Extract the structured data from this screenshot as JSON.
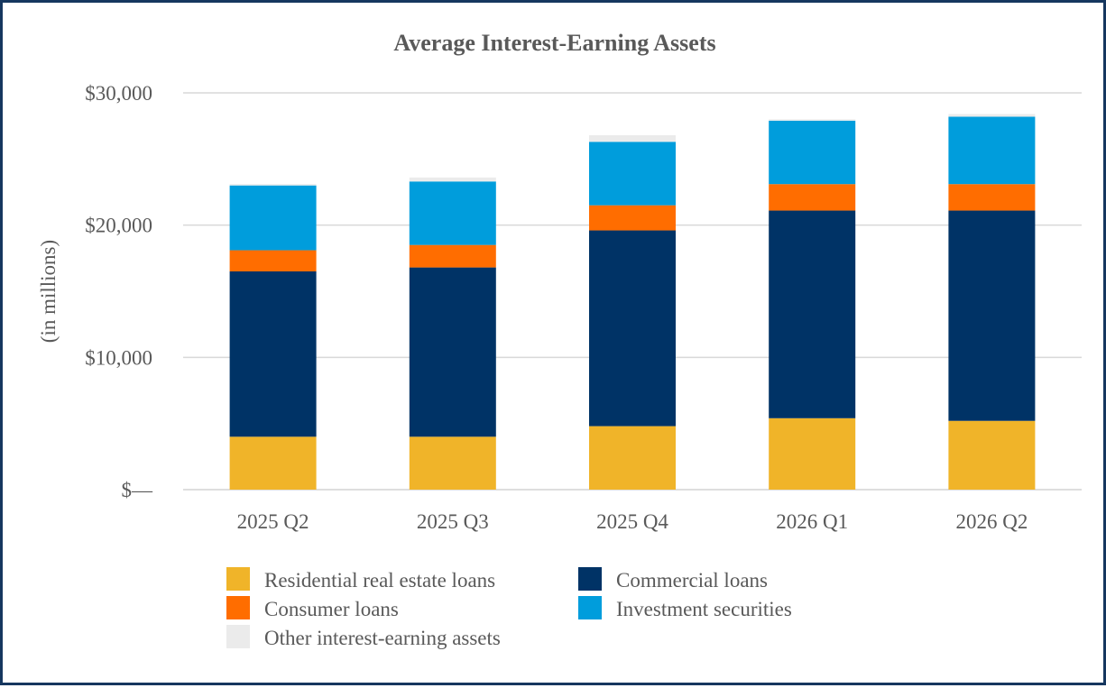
{
  "chart_data": {
    "type": "bar",
    "stacked": true,
    "title": "Average Interest-Earning Assets",
    "xlabel": "",
    "ylabel": "(in millions)",
    "categories": [
      "2025 Q2",
      "2025 Q3",
      "2025 Q4",
      "2026 Q1",
      "2026 Q2"
    ],
    "ylim": [
      0,
      30000
    ],
    "yticks": [
      0,
      10000,
      20000,
      30000
    ],
    "ytick_labels": [
      "$—",
      "$10,000",
      "$20,000",
      "$30,000"
    ],
    "grid": true,
    "legend_position": "bottom",
    "series": [
      {
        "name": "Residential real estate loans",
        "color": "#f0b429",
        "values": [
          4000,
          4000,
          4800,
          5400,
          5200
        ]
      },
      {
        "name": "Commercial loans",
        "color": "#003366",
        "values": [
          12500,
          12800,
          14800,
          15700,
          15900
        ]
      },
      {
        "name": "Consumer loans",
        "color": "#ff6d00",
        "values": [
          1600,
          1700,
          1900,
          2000,
          2000
        ]
      },
      {
        "name": "Investment securities",
        "color": "#009ddc",
        "values": [
          4900,
          4800,
          4800,
          4800,
          5100
        ]
      },
      {
        "name": "Other interest-earning assets",
        "color": "#ebebeb",
        "values": [
          100,
          300,
          500,
          100,
          200
        ]
      }
    ]
  }
}
